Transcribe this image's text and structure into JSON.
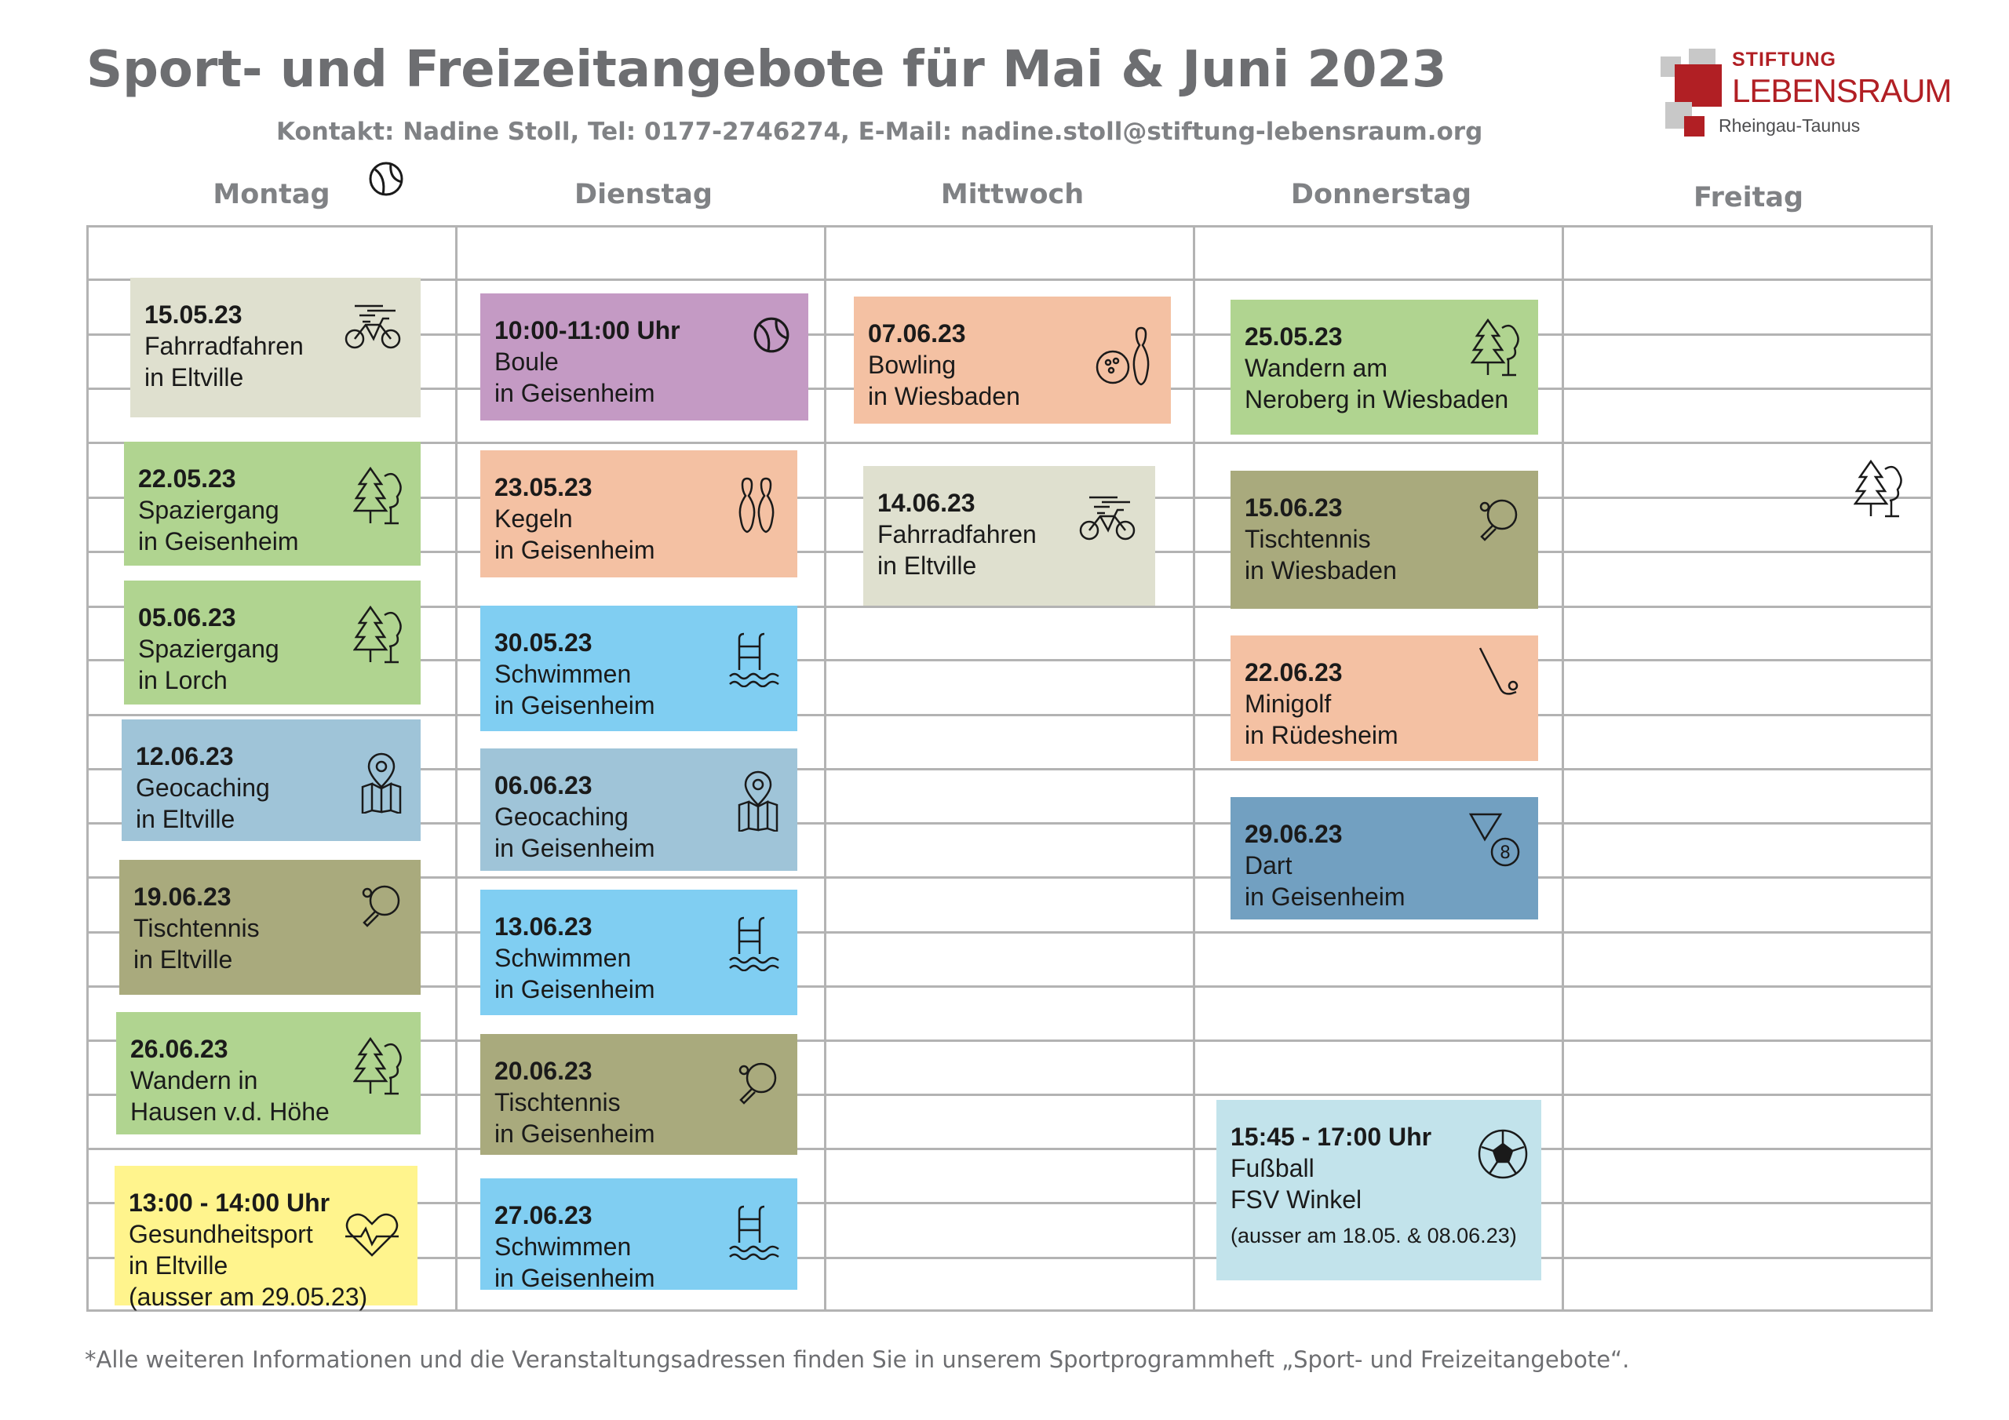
{
  "header": {
    "title": "Sport- und Freizeitangebote für Mai & Juni 2023",
    "contact": "Kontakt: Nadine Stoll, Tel: 0177-2746274, E-Mail: nadine.stoll@stiftung-lebensraum.org"
  },
  "logo": {
    "line1": "STIFTUNG",
    "line2": "LEBENSRAUM",
    "line3": "Rheingau-Taunus",
    "brand_color": "#b11f24"
  },
  "days": [
    "Montag",
    "Dienstag",
    "Mittwoch",
    "Donnerstag",
    "Freitag"
  ],
  "colors": {
    "grey_green": "#dfe0cf",
    "green": "#b0d490",
    "purple": "#c49ac4",
    "salmon": "#f4c1a3",
    "sky": "#80cef2",
    "steel": "#9fc4d8",
    "olive": "#a9aa7d",
    "blue": "#72a0c1",
    "yellow": "#fff48d",
    "light_cyan": "#c2e3eb"
  },
  "montag": [
    {
      "date": "15.05.23",
      "activity": "Fahrradfahren",
      "place": "in Eltville",
      "icon": "bicycle-icon"
    },
    {
      "date": "22.05.23",
      "activity": "Spaziergang",
      "place": "in Geisenheim",
      "icon": "trees-icon"
    },
    {
      "date": "05.06.23",
      "activity": "Spaziergang",
      "place": "in Lorch",
      "icon": "trees-icon"
    },
    {
      "date": "12.06.23",
      "activity": "Geocaching",
      "place": "in Eltville",
      "icon": "map-pin-icon"
    },
    {
      "date": "19.06.23",
      "activity": "Tischtennis",
      "place": "in Eltville",
      "icon": "ping-pong-icon"
    },
    {
      "date": "26.06.23",
      "activity": "Wandern in",
      "place": "Hausen v.d. Höhe",
      "icon": "trees-icon"
    },
    {
      "date": "13:00 - 14:00 Uhr",
      "activity": "Gesundheitsport",
      "place": "in Eltville",
      "note": "(ausser am 29.05.23)",
      "icon": "heartbeat-icon"
    }
  ],
  "dienstag": [
    {
      "date": "10:00-11:00 Uhr",
      "activity": "Boule",
      "place": "in Geisenheim",
      "icon": "boule-ball-icon"
    },
    {
      "date": "23.05.23",
      "activity": "Kegeln",
      "place": "in Geisenheim",
      "icon": "bowling-pins-icon"
    },
    {
      "date": "30.05.23",
      "activity": "Schwimmen",
      "place": "in Geisenheim",
      "icon": "swimming-pool-icon"
    },
    {
      "date": "06.06.23",
      "activity": "Geocaching",
      "place": "in Geisenheim",
      "icon": "map-pin-icon"
    },
    {
      "date": "13.06.23",
      "activity": "Schwimmen",
      "place": "in Geisenheim",
      "icon": "swimming-pool-icon"
    },
    {
      "date": "20.06.23",
      "activity": "Tischtennis",
      "place": "in Geisenheim",
      "icon": "ping-pong-icon"
    },
    {
      "date": "27.06.23",
      "activity": "Schwimmen",
      "place": "in Geisenheim",
      "icon": "swimming-pool-icon"
    }
  ],
  "mittwoch": [
    {
      "date": "07.06.23",
      "activity": "Bowling",
      "place": "in Wiesbaden",
      "icon": "bowling-icon"
    },
    {
      "date": "14.06.23",
      "activity": "Fahrradfahren",
      "place": "in Eltville",
      "icon": "bicycle-icon"
    }
  ],
  "donnerstag": [
    {
      "date": "25.05.23",
      "activity": "Wandern am",
      "place": "Neroberg in Wiesbaden",
      "icon": "trees-icon"
    },
    {
      "date": "15.06.23",
      "activity": "Tischtennis",
      "place": "in Wiesbaden",
      "icon": "ping-pong-icon"
    },
    {
      "date": "22.06.23",
      "activity": "Minigolf",
      "place": "in Rüdesheim",
      "icon": "minigolf-icon"
    },
    {
      "date": "29.06.23",
      "activity": "Dart",
      "place": "in Geisenheim",
      "icon": "billiard-icon"
    },
    {
      "date": "15:45 - 17:00 Uhr",
      "activity": "Fußball",
      "place": "FSV Winkel",
      "note": "(ausser am 18.05. & 08.06.23)",
      "icon": "soccer-ball-icon"
    }
  ],
  "footnote": "*Alle weiteren Informationen und die Veranstaltungsadressen finden Sie in unserem Sportprogrammheft „Sport- und Freizeitangebote“."
}
